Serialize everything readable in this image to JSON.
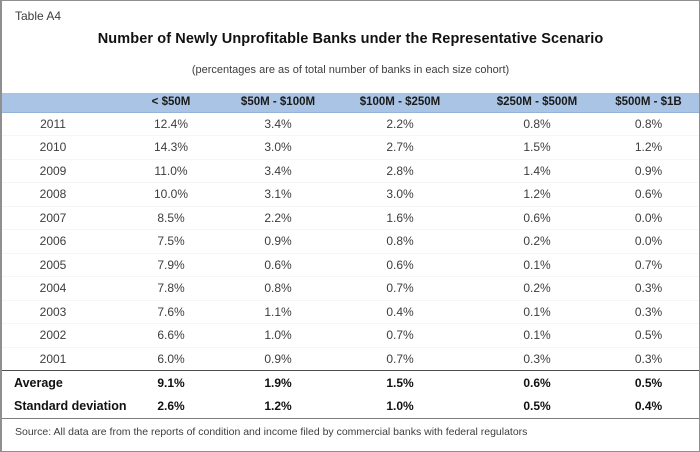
{
  "header": {
    "tag": "Table A4",
    "title": "Number of Newly Unprofitable Banks under the Representative Scenario",
    "subtitle": "(percentages are as of total number of banks in each size cohort)"
  },
  "table": {
    "columns": [
      "< $50M",
      "$50M - $100M",
      "$100M - $250M",
      "$250M - $500M",
      "$500M - $1B"
    ],
    "rows": [
      {
        "label": "2011",
        "values": [
          "12.4%",
          "3.4%",
          "2.2%",
          "0.8%",
          "0.8%"
        ]
      },
      {
        "label": "2010",
        "values": [
          "14.3%",
          "3.0%",
          "2.7%",
          "1.5%",
          "1.2%"
        ]
      },
      {
        "label": "2009",
        "values": [
          "11.0%",
          "3.4%",
          "2.8%",
          "1.4%",
          "0.9%"
        ]
      },
      {
        "label": "2008",
        "values": [
          "10.0%",
          "3.1%",
          "3.0%",
          "1.2%",
          "0.6%"
        ]
      },
      {
        "label": "2007",
        "values": [
          "8.5%",
          "2.2%",
          "1.6%",
          "0.6%",
          "0.0%"
        ]
      },
      {
        "label": "2006",
        "values": [
          "7.5%",
          "0.9%",
          "0.8%",
          "0.2%",
          "0.0%"
        ]
      },
      {
        "label": "2005",
        "values": [
          "7.9%",
          "0.6%",
          "0.6%",
          "0.1%",
          "0.7%"
        ]
      },
      {
        "label": "2004",
        "values": [
          "7.8%",
          "0.8%",
          "0.7%",
          "0.2%",
          "0.3%"
        ]
      },
      {
        "label": "2003",
        "values": [
          "7.6%",
          "1.1%",
          "0.4%",
          "0.1%",
          "0.3%"
        ]
      },
      {
        "label": "2002",
        "values": [
          "6.6%",
          "1.0%",
          "0.7%",
          "0.1%",
          "0.5%"
        ]
      },
      {
        "label": "2001",
        "values": [
          "6.0%",
          "0.9%",
          "0.7%",
          "0.3%",
          "0.3%"
        ]
      }
    ],
    "summary_rows": [
      {
        "label": "Average",
        "values": [
          "9.1%",
          "1.9%",
          "1.5%",
          "0.6%",
          "0.5%"
        ]
      },
      {
        "label": "Standard deviation",
        "values": [
          "2.6%",
          "1.2%",
          "1.0%",
          "0.5%",
          "0.4%"
        ]
      }
    ]
  },
  "footer": {
    "source": "Source: All data are from the reports of condition and income filed by commercial banks with federal regulators"
  },
  "colors": {
    "header_band": "#a9c4e4",
    "frame_border": "#8f8f8f",
    "text": "#3d3d3d",
    "bold_text": "#111111"
  }
}
